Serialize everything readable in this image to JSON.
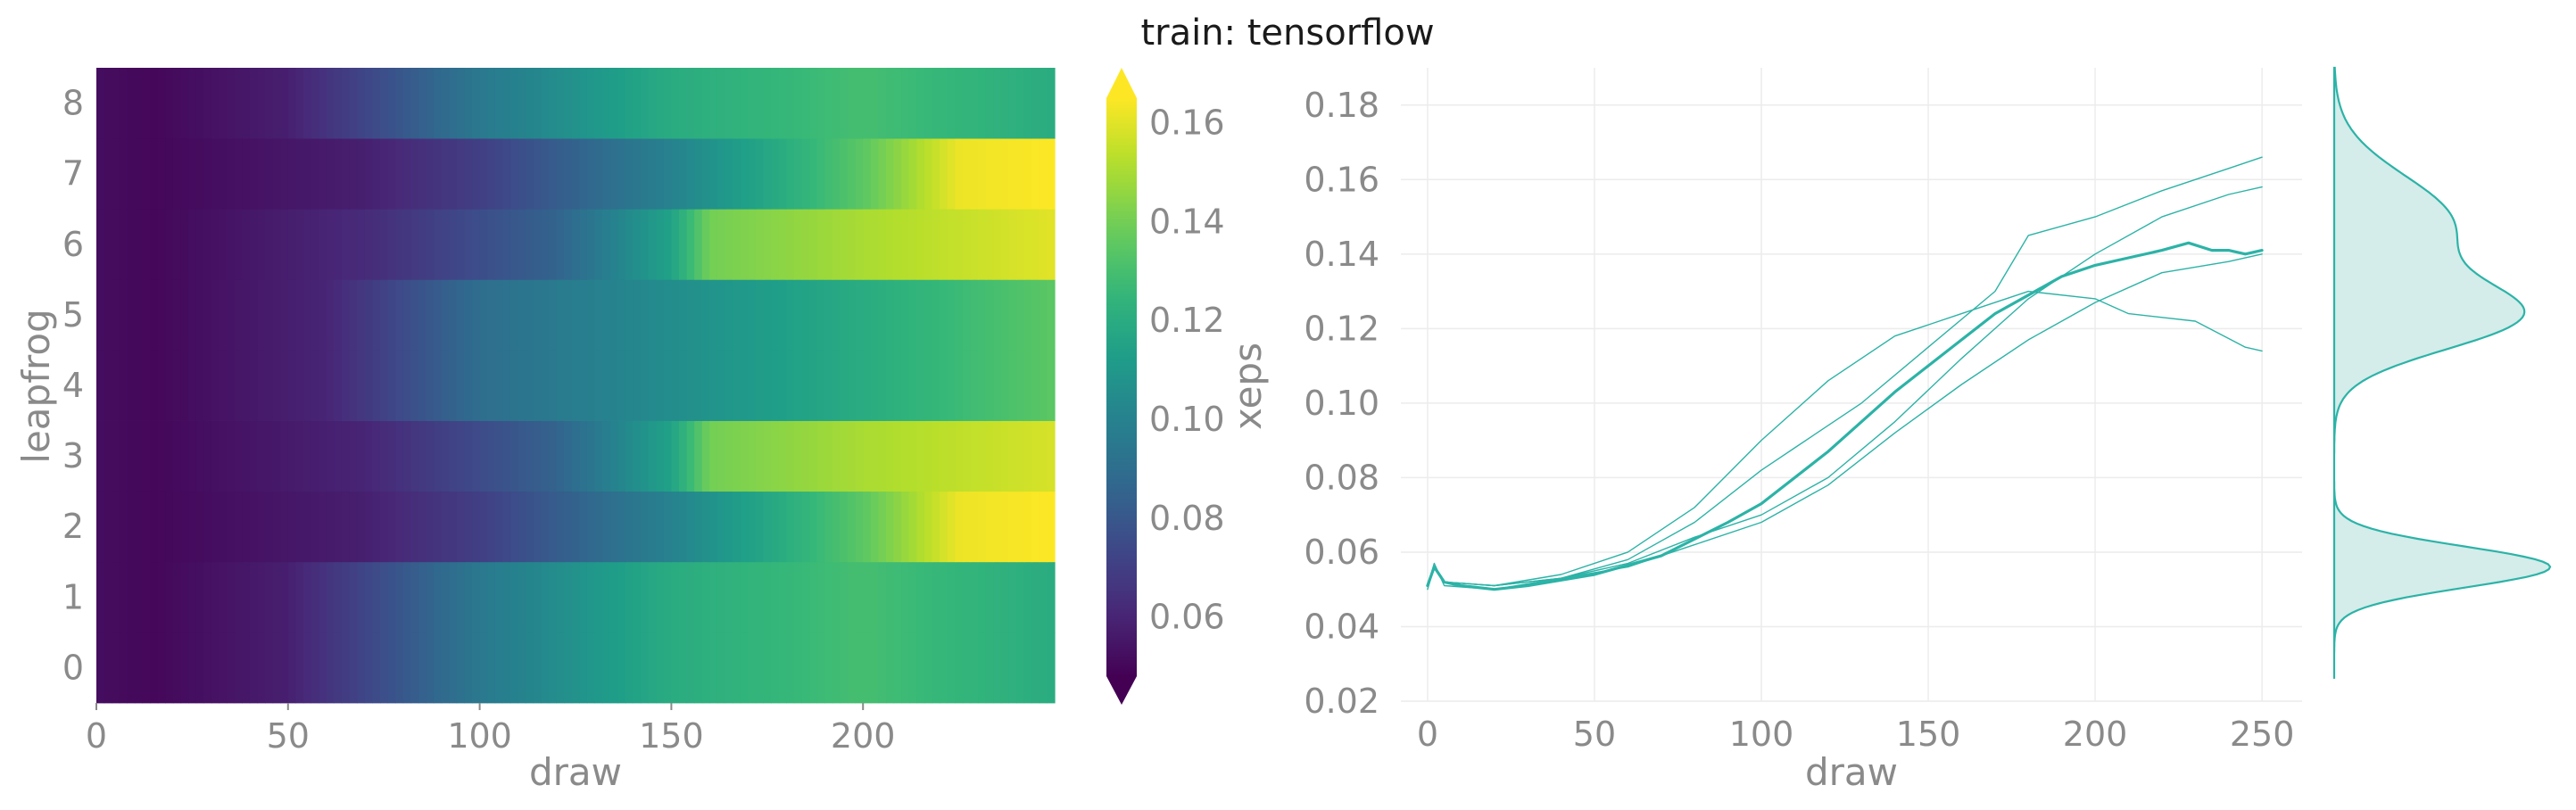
{
  "title": "train: tensorflow",
  "colors": {
    "line": "#2cb3a7",
    "kde_fill": "#d4ecea",
    "grid": "#ececec",
    "tick": "#8a8a8a"
  },
  "chart_data": [
    {
      "type": "heatmap",
      "xlabel": "draw",
      "ylabel": "leapfrog",
      "x_ticks": [
        "0",
        "50",
        "100",
        "150",
        "200"
      ],
      "y_ticks": [
        "0",
        "1",
        "2",
        "3",
        "4",
        "5",
        "6",
        "7",
        "8"
      ],
      "xlim": [
        0,
        250
      ],
      "ylim": [
        -0.5,
        8.5
      ],
      "colormap": "viridis",
      "rows": [
        {
          "leapfrog": 0,
          "knots": [
            [
              0,
              0.052
            ],
            [
              15,
              0.05
            ],
            [
              50,
              0.058
            ],
            [
              100,
              0.095
            ],
            [
              150,
              0.12
            ],
            [
              200,
              0.13
            ],
            [
              250,
              0.12
            ]
          ]
        },
        {
          "leapfrog": 1,
          "knots": [
            [
              0,
              0.052
            ],
            [
              15,
              0.05
            ],
            [
              50,
              0.058
            ],
            [
              100,
              0.095
            ],
            [
              150,
              0.12
            ],
            [
              200,
              0.13
            ],
            [
              250,
              0.12
            ]
          ]
        },
        {
          "leapfrog": 2,
          "knots": [
            [
              0,
              0.052
            ],
            [
              15,
              0.05
            ],
            [
              70,
              0.058
            ],
            [
              100,
              0.07
            ],
            [
              150,
              0.1
            ],
            [
              200,
              0.135
            ],
            [
              225,
              0.162
            ],
            [
              250,
              0.165
            ]
          ]
        },
        {
          "leapfrog": 3,
          "knots": [
            [
              0,
              0.052
            ],
            [
              15,
              0.05
            ],
            [
              70,
              0.06
            ],
            [
              120,
              0.085
            ],
            [
              150,
              0.115
            ],
            [
              160,
              0.14
            ],
            [
              200,
              0.15
            ],
            [
              250,
              0.158
            ]
          ]
        },
        {
          "leapfrog": 4,
          "knots": [
            [
              0,
              0.052
            ],
            [
              15,
              0.05
            ],
            [
              60,
              0.06
            ],
            [
              100,
              0.09
            ],
            [
              150,
              0.105
            ],
            [
              200,
              0.12
            ],
            [
              250,
              0.135
            ]
          ]
        },
        {
          "leapfrog": 5,
          "knots": [
            [
              0,
              0.052
            ],
            [
              15,
              0.05
            ],
            [
              60,
              0.06
            ],
            [
              100,
              0.09
            ],
            [
              150,
              0.105
            ],
            [
              200,
              0.12
            ],
            [
              250,
              0.135
            ]
          ]
        },
        {
          "leapfrog": 6,
          "knots": [
            [
              0,
              0.052
            ],
            [
              15,
              0.05
            ],
            [
              70,
              0.062
            ],
            [
              120,
              0.085
            ],
            [
              150,
              0.115
            ],
            [
              160,
              0.14
            ],
            [
              200,
              0.15
            ],
            [
              250,
              0.16
            ]
          ]
        },
        {
          "leapfrog": 7,
          "knots": [
            [
              0,
              0.052
            ],
            [
              15,
              0.05
            ],
            [
              70,
              0.058
            ],
            [
              100,
              0.07
            ],
            [
              150,
              0.1
            ],
            [
              200,
              0.135
            ],
            [
              225,
              0.162
            ],
            [
              250,
              0.165
            ]
          ]
        },
        {
          "leapfrog": 8,
          "knots": [
            [
              0,
              0.052
            ],
            [
              15,
              0.05
            ],
            [
              50,
              0.058
            ],
            [
              100,
              0.095
            ],
            [
              150,
              0.12
            ],
            [
              200,
              0.13
            ],
            [
              250,
              0.12
            ]
          ]
        }
      ]
    },
    {
      "type": "colorbar",
      "label": "xeps",
      "range": [
        0.048,
        0.165
      ],
      "ticks": [
        0.06,
        0.08,
        0.1,
        0.12,
        0.14,
        0.16
      ],
      "tick_labels": [
        "0.06",
        "0.08",
        "0.10",
        "0.12",
        "0.14",
        "0.16"
      ],
      "extend": "both"
    },
    {
      "type": "line",
      "xlabel": "draw",
      "ylabel": "",
      "xlim": [
        -8,
        262
      ],
      "ylim": [
        0.02,
        0.19
      ],
      "x_ticks": [
        "0",
        "50",
        "100",
        "150",
        "200",
        "250"
      ],
      "y_ticks": [
        "0.02",
        "0.04",
        "0.06",
        "0.08",
        "0.10",
        "0.12",
        "0.14",
        "0.16",
        "0.18"
      ],
      "grid": true,
      "series": [
        {
          "role": "mean",
          "points": [
            [
              0,
              0.051
            ],
            [
              2,
              0.056
            ],
            [
              5,
              0.052
            ],
            [
              10,
              0.051
            ],
            [
              20,
              0.05
            ],
            [
              30,
              0.051
            ],
            [
              50,
              0.054
            ],
            [
              70,
              0.059
            ],
            [
              90,
              0.068
            ],
            [
              100,
              0.073
            ],
            [
              120,
              0.087
            ],
            [
              140,
              0.103
            ],
            [
              150,
              0.11
            ],
            [
              160,
              0.117
            ],
            [
              170,
              0.124
            ],
            [
              180,
              0.129
            ],
            [
              190,
              0.134
            ],
            [
              200,
              0.137
            ],
            [
              210,
              0.139
            ],
            [
              220,
              0.141
            ],
            [
              228,
              0.143
            ],
            [
              235,
              0.141
            ],
            [
              240,
              0.141
            ],
            [
              245,
              0.14
            ],
            [
              250,
              0.141
            ]
          ]
        },
        {
          "role": "chain",
          "points": [
            [
              0,
              0.051
            ],
            [
              2,
              0.057
            ],
            [
              5,
              0.051
            ],
            [
              20,
              0.05
            ],
            [
              40,
              0.053
            ],
            [
              60,
              0.057
            ],
            [
              80,
              0.064
            ],
            [
              100,
              0.07
            ],
            [
              120,
              0.08
            ],
            [
              140,
              0.095
            ],
            [
              160,
              0.112
            ],
            [
              180,
              0.128
            ],
            [
              200,
              0.14
            ],
            [
              220,
              0.15
            ],
            [
              240,
              0.156
            ],
            [
              250,
              0.158
            ]
          ]
        },
        {
          "role": "chain",
          "points": [
            [
              0,
              0.051
            ],
            [
              2,
              0.056
            ],
            [
              5,
              0.052
            ],
            [
              20,
              0.051
            ],
            [
              40,
              0.053
            ],
            [
              60,
              0.056
            ],
            [
              80,
              0.062
            ],
            [
              100,
              0.068
            ],
            [
              120,
              0.078
            ],
            [
              140,
              0.092
            ],
            [
              160,
              0.105
            ],
            [
              180,
              0.117
            ],
            [
              200,
              0.127
            ],
            [
              220,
              0.135
            ],
            [
              240,
              0.138
            ],
            [
              250,
              0.14
            ]
          ]
        },
        {
          "role": "chain",
          "points": [
            [
              0,
              0.051
            ],
            [
              2,
              0.056
            ],
            [
              5,
              0.052
            ],
            [
              20,
              0.051
            ],
            [
              40,
              0.053
            ],
            [
              60,
              0.058
            ],
            [
              80,
              0.068
            ],
            [
              100,
              0.082
            ],
            [
              110,
              0.088
            ],
            [
              130,
              0.1
            ],
            [
              150,
              0.115
            ],
            [
              170,
              0.13
            ],
            [
              180,
              0.145
            ],
            [
              200,
              0.15
            ],
            [
              220,
              0.157
            ],
            [
              240,
              0.163
            ],
            [
              250,
              0.166
            ]
          ]
        },
        {
          "role": "chain",
          "points": [
            [
              0,
              0.05
            ],
            [
              2,
              0.056
            ],
            [
              5,
              0.052
            ],
            [
              20,
              0.051
            ],
            [
              40,
              0.054
            ],
            [
              60,
              0.06
            ],
            [
              80,
              0.072
            ],
            [
              100,
              0.09
            ],
            [
              120,
              0.106
            ],
            [
              140,
              0.118
            ],
            [
              160,
              0.124
            ],
            [
              180,
              0.13
            ],
            [
              200,
              0.128
            ],
            [
              210,
              0.124
            ],
            [
              230,
              0.122
            ],
            [
              245,
              0.115
            ],
            [
              250,
              0.114
            ]
          ]
        }
      ]
    },
    {
      "type": "area",
      "role": "kde",
      "orientation": "vertical",
      "ylim": [
        0.02,
        0.19
      ],
      "y_range": [
        0.026,
        0.19
      ],
      "components": [
        {
          "mu": 0.056,
          "sigma": 0.0055,
          "weight": 0.28
        },
        {
          "mu": 0.123,
          "sigma": 0.009,
          "weight": 0.36
        },
        {
          "mu": 0.148,
          "sigma": 0.013,
          "weight": 0.36
        }
      ]
    }
  ]
}
